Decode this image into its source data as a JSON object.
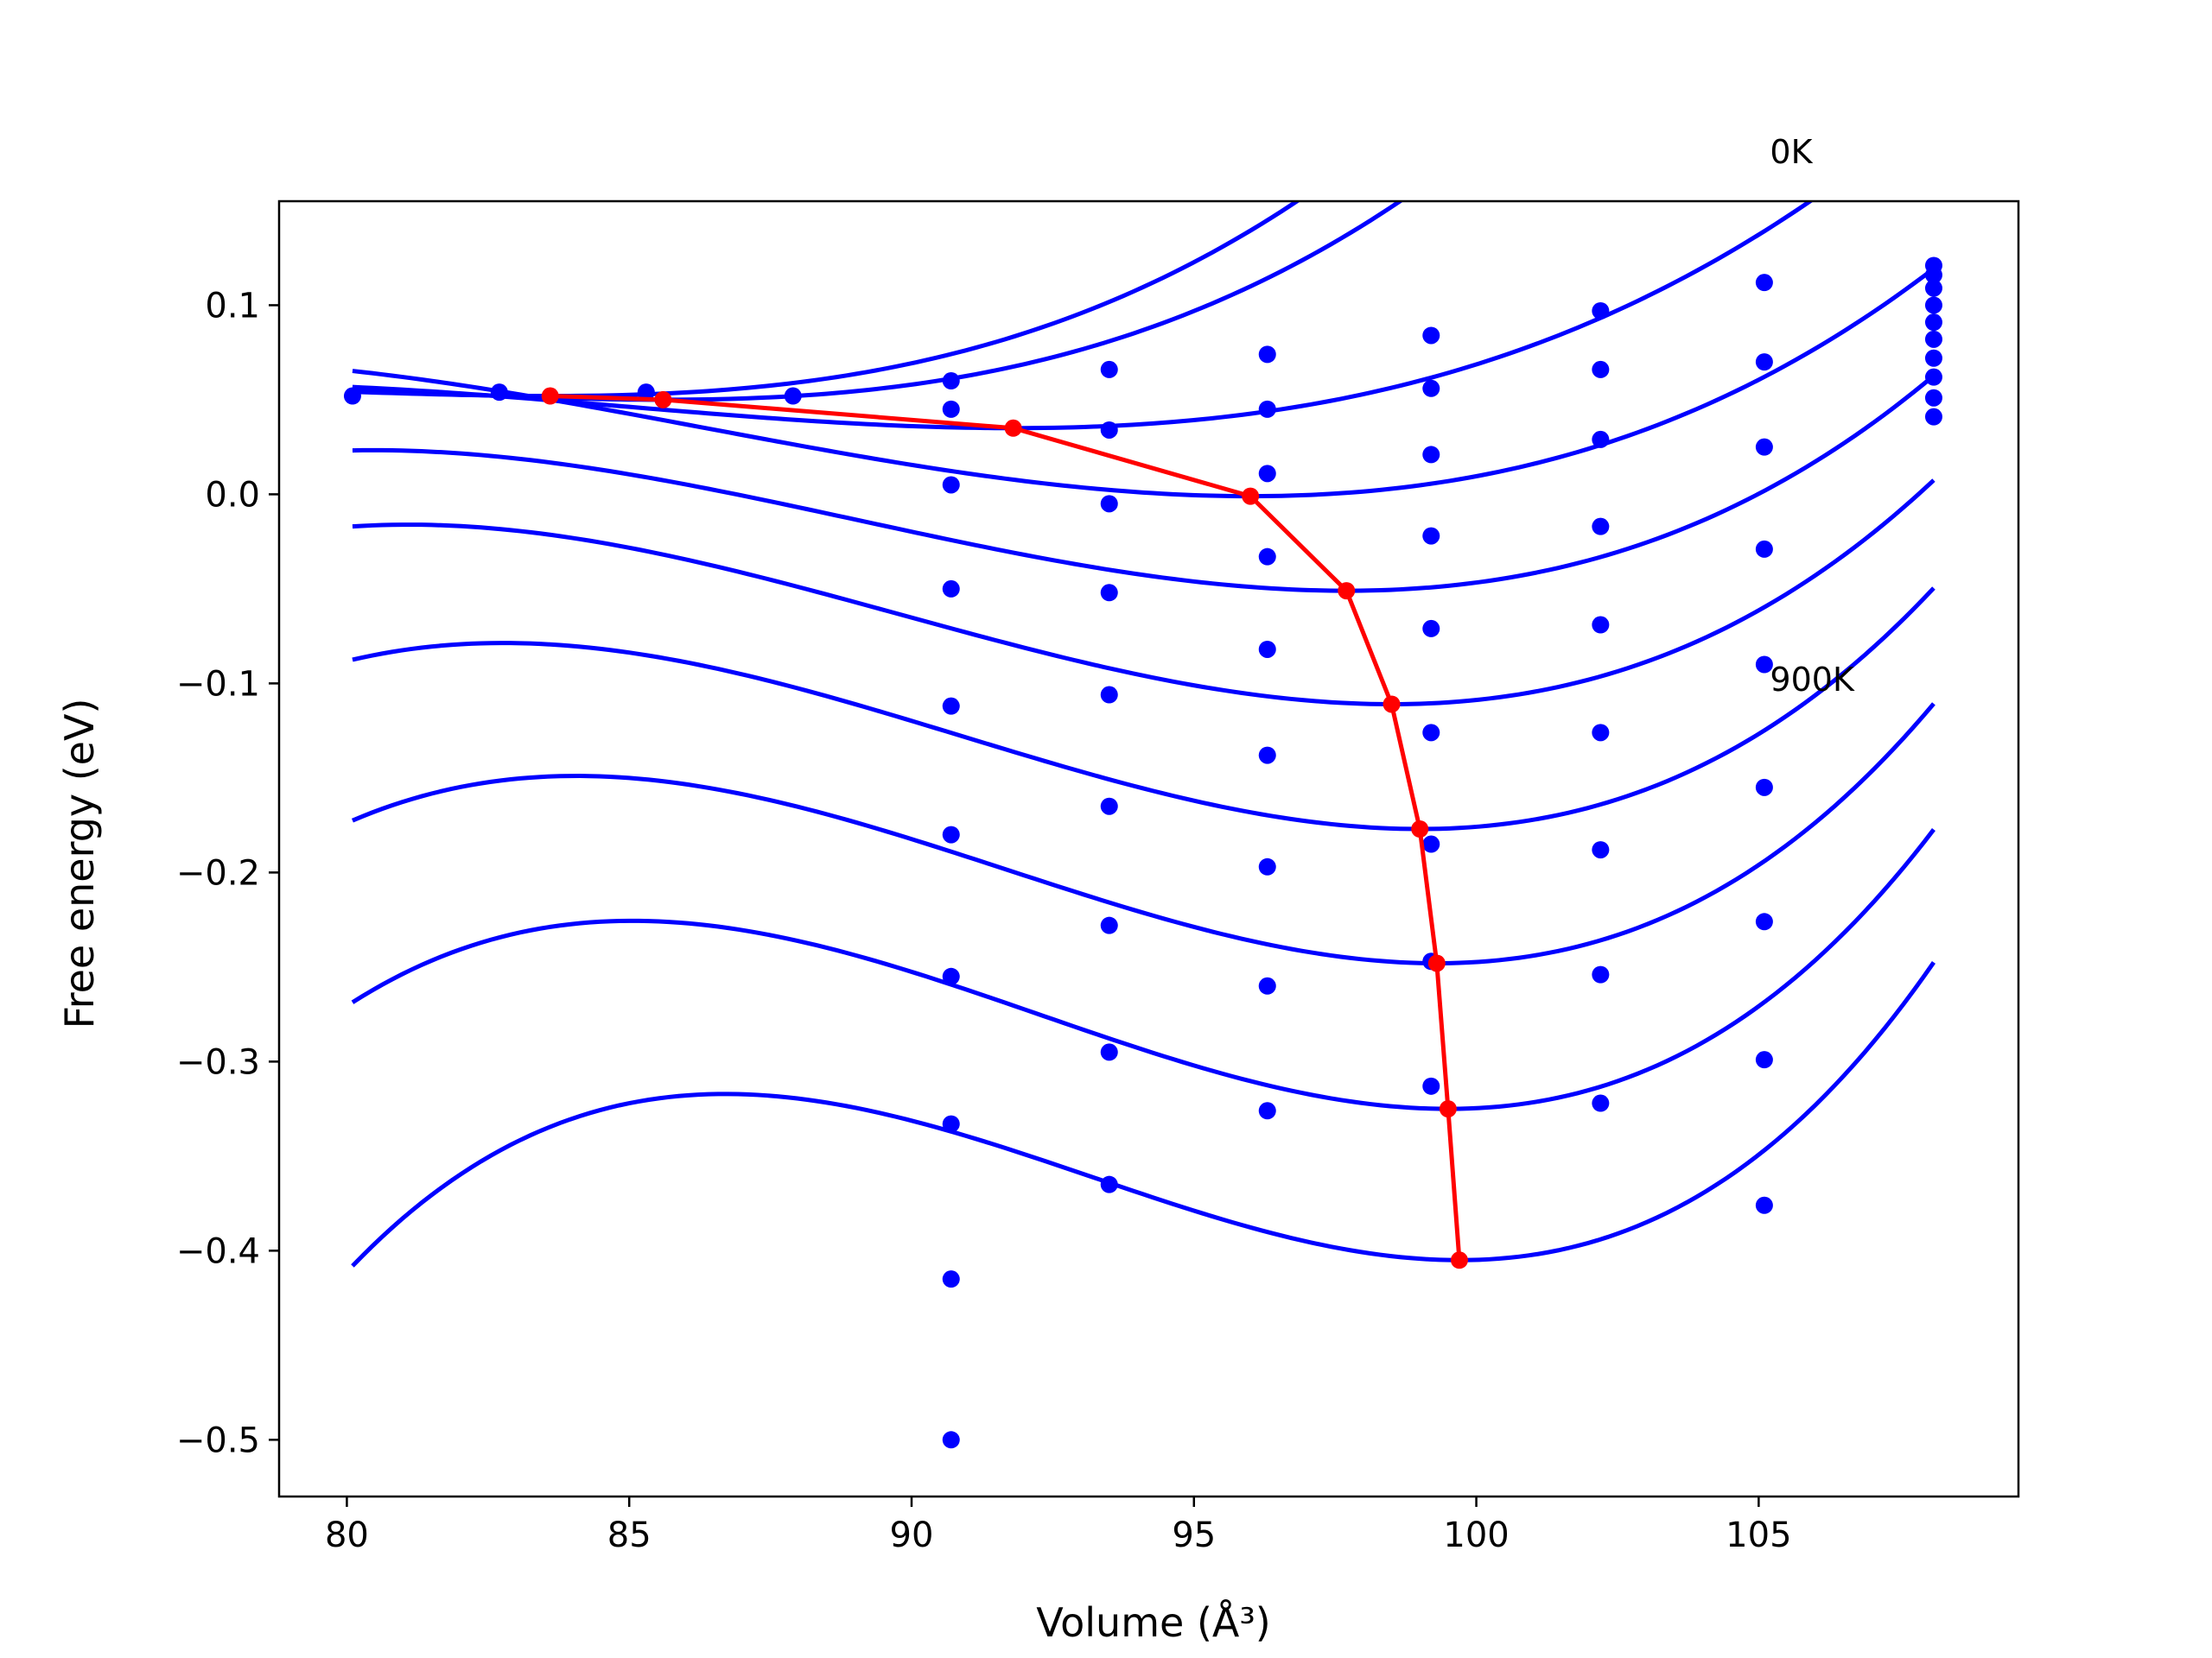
{
  "chart_data": {
    "type": "line",
    "xlabel": "Volume (Å³)",
    "ylabel": "Free energy (eV)",
    "xlim": [
      78.8,
      109.6
    ],
    "ylim": [
      -0.53,
      0.155
    ],
    "xticks": [
      80,
      85,
      90,
      95,
      100,
      105
    ],
    "yticks": [
      0.1,
      0.0,
      -0.1,
      -0.2,
      -0.3,
      -0.4,
      -0.5
    ],
    "xtick_labels": [
      "80",
      "85",
      "90",
      "95",
      "100",
      "105"
    ],
    "ytick_labels": [
      "0.1",
      "0.0",
      "−0.1",
      "−0.2",
      "−0.3",
      "−0.4",
      "−0.5"
    ],
    "grid": false,
    "annotations": [
      {
        "text": "0K",
        "x": 105.2,
        "y": 0.175
      },
      {
        "text": "900K",
        "x": 105.2,
        "y": -0.104
      }
    ],
    "curve_x_range": [
      80.1,
      108.1
    ],
    "fit_curves": [
      {
        "v0": 83.6,
        "fmin": 0.052,
        "a": 0.000265,
        "b": 2.45e-05
      },
      {
        "v0": 85.6,
        "fmin": 0.05,
        "a": 0.00031,
        "b": 2.35e-05
      },
      {
        "v0": 91.8,
        "fmin": 0.035,
        "a": 0.00036,
        "b": 1.72e-05
      },
      {
        "v0": 96.0,
        "fmin": -0.001,
        "a": 0.00058,
        "b": 2e-05
      },
      {
        "v0": 97.7,
        "fmin": -0.051,
        "a": 0.00075,
        "b": 2.9e-05
      },
      {
        "v0": 98.5,
        "fmin": -0.111,
        "a": 0.00094,
        "b": 3.6e-05
      },
      {
        "v0": 99.0,
        "fmin": -0.177,
        "a": 0.00112,
        "b": 4.6e-05
      },
      {
        "v0": 99.3,
        "fmin": -0.248,
        "a": 0.00128,
        "b": 5.6e-05
      },
      {
        "v0": 99.5,
        "fmin": -0.325,
        "a": 0.00143,
        "b": 6.6e-05
      },
      {
        "v0": 99.7,
        "fmin": -0.405,
        "a": 0.00156,
        "b": 8e-05
      }
    ],
    "scatter": {
      "color": "#0000ff",
      "points": [
        [
          80.1,
          0.052
        ],
        [
          82.7,
          0.054
        ],
        [
          85.3,
          0.054
        ],
        [
          87.9,
          0.052
        ],
        [
          90.7,
          0.06
        ],
        [
          90.7,
          0.045
        ],
        [
          90.7,
          0.005
        ],
        [
          90.7,
          -0.05
        ],
        [
          90.7,
          -0.112
        ],
        [
          90.7,
          -0.18
        ],
        [
          90.7,
          -0.255
        ],
        [
          90.7,
          -0.333
        ],
        [
          90.7,
          -0.415
        ],
        [
          90.7,
          -0.5
        ],
        [
          93.5,
          0.066
        ],
        [
          93.5,
          0.034
        ],
        [
          93.5,
          -0.005
        ],
        [
          93.5,
          -0.052
        ],
        [
          93.5,
          -0.106
        ],
        [
          93.5,
          -0.165
        ],
        [
          93.5,
          -0.228
        ],
        [
          93.5,
          -0.295
        ],
        [
          93.5,
          -0.365
        ],
        [
          96.3,
          0.074
        ],
        [
          96.3,
          0.045
        ],
        [
          96.3,
          0.011
        ],
        [
          96.3,
          -0.033
        ],
        [
          96.3,
          -0.082
        ],
        [
          96.3,
          -0.138
        ],
        [
          96.3,
          -0.197
        ],
        [
          96.3,
          -0.26
        ],
        [
          96.3,
          -0.326
        ],
        [
          99.2,
          0.084
        ],
        [
          99.2,
          0.056
        ],
        [
          99.2,
          0.021
        ],
        [
          99.2,
          -0.022
        ],
        [
          99.2,
          -0.071
        ],
        [
          99.2,
          -0.126
        ],
        [
          99.2,
          -0.185
        ],
        [
          99.2,
          -0.247
        ],
        [
          99.2,
          -0.313
        ],
        [
          102.2,
          0.097
        ],
        [
          102.2,
          0.066
        ],
        [
          102.2,
          0.029
        ],
        [
          102.2,
          -0.017
        ],
        [
          102.2,
          -0.069
        ],
        [
          102.2,
          -0.126
        ],
        [
          102.2,
          -0.188
        ],
        [
          102.2,
          -0.254
        ],
        [
          102.2,
          -0.322
        ],
        [
          105.1,
          0.112
        ],
        [
          105.1,
          0.07
        ],
        [
          105.1,
          0.025
        ],
        [
          105.1,
          -0.029
        ],
        [
          105.1,
          -0.09
        ],
        [
          105.1,
          -0.155
        ],
        [
          105.1,
          -0.226
        ],
        [
          105.1,
          -0.299
        ],
        [
          105.1,
          -0.376
        ],
        [
          108.1,
          0.121
        ],
        [
          108.1,
          0.116
        ],
        [
          108.1,
          0.109
        ],
        [
          108.1,
          0.1
        ],
        [
          108.1,
          0.091
        ],
        [
          108.1,
          0.082
        ],
        [
          108.1,
          0.072
        ],
        [
          108.1,
          0.062
        ],
        [
          108.1,
          0.051
        ],
        [
          108.1,
          0.041
        ]
      ]
    },
    "series": [
      {
        "color": "#ff0000",
        "x": [
          83.6,
          85.6,
          91.8,
          96.0,
          97.7,
          98.5,
          99.0,
          99.3,
          99.5,
          99.7
        ],
        "y": [
          0.052,
          0.05,
          0.035,
          -0.001,
          -0.051,
          -0.111,
          -0.177,
          -0.248,
          -0.325,
          -0.405
        ]
      }
    ],
    "curve_color": "#0000ff"
  }
}
